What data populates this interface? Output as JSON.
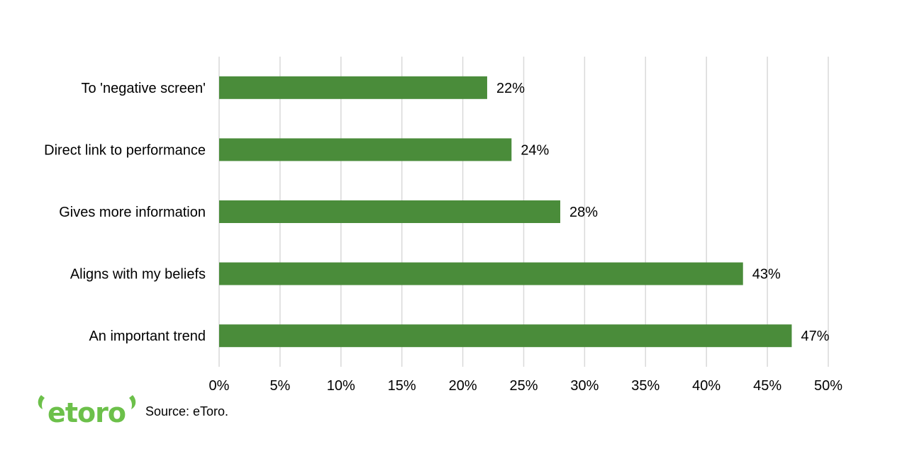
{
  "chart_data": {
    "type": "bar",
    "orientation": "horizontal",
    "categories": [
      "To 'negative screen'",
      "Direct link to performance",
      "Gives more information",
      "Aligns with my beliefs",
      "An important trend"
    ],
    "values": [
      22,
      24,
      28,
      43,
      47
    ],
    "data_labels": [
      "22%",
      "24%",
      "28%",
      "43%",
      "47%"
    ],
    "xlim": [
      0,
      50
    ],
    "xticks": [
      0,
      5,
      10,
      15,
      20,
      25,
      30,
      35,
      40,
      45,
      50
    ],
    "xtick_labels": [
      "0%",
      "5%",
      "10%",
      "15%",
      "20%",
      "25%",
      "30%",
      "35%",
      "40%",
      "45%",
      "50%"
    ],
    "grid": true,
    "bar_color": "#4a8c3a"
  },
  "footer": {
    "logo_text": "etoro",
    "source": "Source: eToro."
  },
  "colors": {
    "brand_green": "#6cc04a",
    "bar_green": "#4a8c3a",
    "grid": "#d9d9d9"
  }
}
